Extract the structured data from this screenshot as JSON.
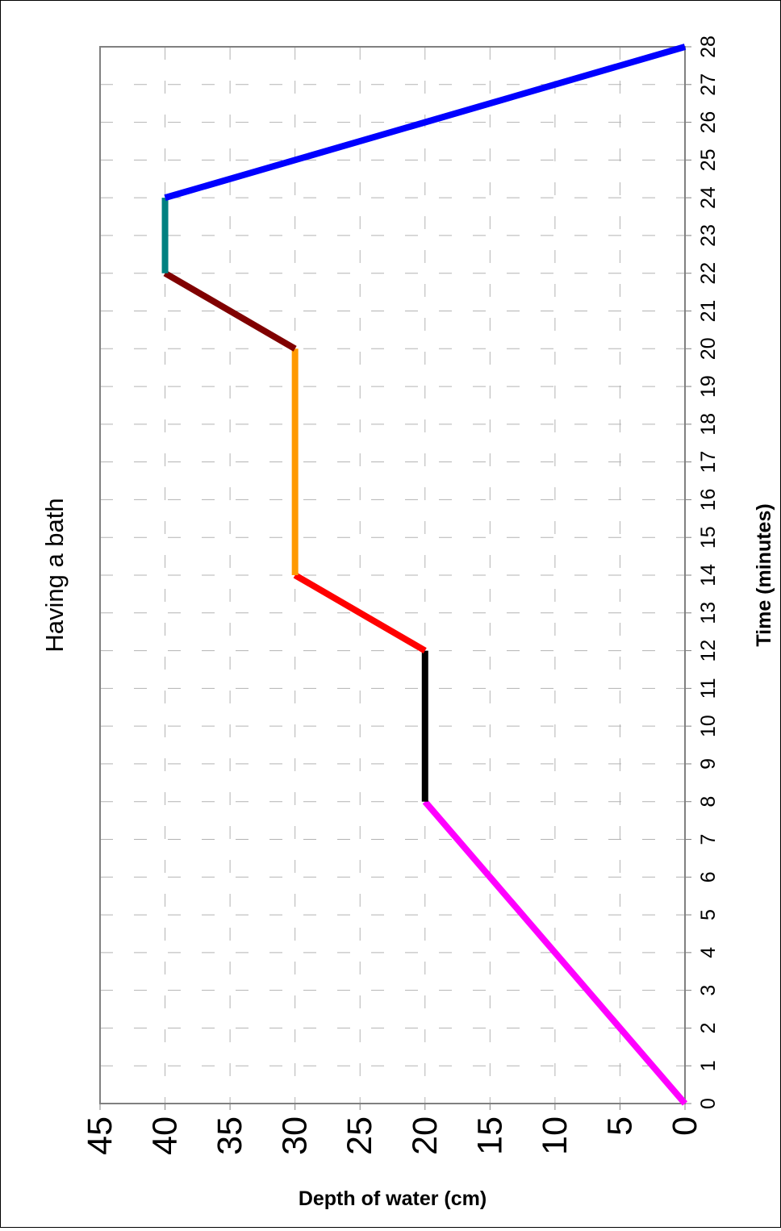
{
  "chart_data": {
    "type": "line",
    "title": "Having a bath",
    "xlabel": "Time (minutes)",
    "ylabel": "Depth of water (cm)",
    "xlim": [
      0,
      28
    ],
    "ylim": [
      0,
      45
    ],
    "x_ticks": [
      "0",
      "1",
      "2",
      "3",
      "4",
      "5",
      "6",
      "7",
      "8",
      "9",
      "10",
      "11",
      "12",
      "13",
      "14",
      "15",
      "16",
      "17",
      "18",
      "19",
      "20",
      "21",
      "22",
      "23",
      "24",
      "25",
      "26",
      "27",
      "28"
    ],
    "y_ticks": [
      "0",
      "5",
      "10",
      "15",
      "20",
      "25",
      "30",
      "35",
      "40",
      "45"
    ],
    "grid": true,
    "orientation": "rotated 90° counter-clockwise",
    "series": [
      {
        "color": "#ff00ff",
        "x": [
          0,
          8
        ],
        "y": [
          0,
          20
        ]
      },
      {
        "color": "#000000",
        "x": [
          8,
          12
        ],
        "y": [
          20,
          20
        ]
      },
      {
        "color": "#ff0000",
        "x": [
          12,
          14
        ],
        "y": [
          20,
          30
        ]
      },
      {
        "color": "#ff9900",
        "x": [
          14,
          20
        ],
        "y": [
          30,
          30
        ]
      },
      {
        "color": "#800000",
        "x": [
          20,
          22
        ],
        "y": [
          30,
          40
        ]
      },
      {
        "color": "#008080",
        "x": [
          22,
          24
        ],
        "y": [
          40,
          40
        ]
      },
      {
        "color": "#0000ff",
        "x": [
          24,
          28
        ],
        "y": [
          40,
          0
        ]
      }
    ]
  }
}
